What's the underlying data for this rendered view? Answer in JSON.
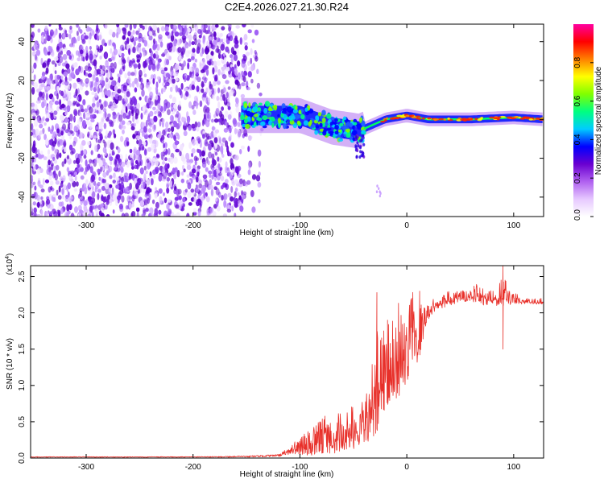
{
  "title": "C2E4.2026.027.21.30.R24",
  "chart_data": [
    {
      "type": "heatmap",
      "name": "spectrogram",
      "xlabel": "Height of straight line (km)",
      "ylabel": "Frequency (Hz)",
      "xlim": [
        -352,
        128
      ],
      "ylim": [
        -50,
        49
      ],
      "xticks": [
        -300,
        -200,
        -100,
        0,
        100
      ],
      "yticks": [
        -40,
        -20,
        0,
        20,
        40
      ],
      "colorbar": {
        "label": "Normalized spectral amplitude",
        "range": [
          0,
          1
        ],
        "ticks": [
          0.0,
          0.2,
          0.4,
          0.6,
          0.8
        ],
        "colors": [
          "#ffffff",
          "#e6c8ff",
          "#b060f0",
          "#6a00d0",
          "#0000ff",
          "#00ccff",
          "#00ff80",
          "#80ff00",
          "#ffff00",
          "#ff8000",
          "#ff0000",
          "#ff00a0"
        ]
      },
      "features": {
        "noise_region_x": [
          -352,
          -135
        ],
        "track_start_x": -155,
        "track_center_hz": [
          [
            -155,
            2
          ],
          [
            -100,
            2
          ],
          [
            -70,
            -4
          ],
          [
            -45,
            -6
          ],
          [
            -20,
            0
          ],
          [
            0,
            2
          ],
          [
            20,
            0
          ],
          [
            60,
            0
          ],
          [
            100,
            1
          ],
          [
            128,
            0
          ]
        ]
      }
    },
    {
      "type": "line",
      "name": "snr",
      "xlabel": "Height of straight line (km)",
      "ylabel": "SNR (10 * v/v)",
      "multiplier": "(x10",
      "multiplier_exp": "4",
      "xlim": [
        -352,
        128
      ],
      "ylim": [
        0,
        2.65
      ],
      "xticks": [
        -300,
        -200,
        -100,
        0,
        100
      ],
      "yticks": [
        0.0,
        0.5,
        1.0,
        1.5,
        2.0,
        2.5
      ],
      "series": [
        {
          "name": "SNR",
          "color": "#e8302a",
          "envelope": {
            "x": [
              -352,
              -200,
              -150,
              -120,
              -110,
              -100,
              -90,
              -80,
              -70,
              -60,
              -50,
              -40,
              -35,
              -30,
              -25,
              -20,
              -15,
              -10,
              -5,
              0,
              5,
              10,
              15,
              20,
              25,
              30,
              40,
              50,
              60,
              70,
              80,
              85,
              90,
              95,
              100,
              110,
              120,
              128
            ],
            "lo": [
              0.01,
              0.01,
              0.01,
              0.02,
              0.05,
              0.05,
              0.03,
              0.05,
              0.05,
              0.08,
              0.1,
              0.15,
              0.2,
              0.3,
              0.5,
              0.7,
              0.8,
              0.8,
              0.9,
              1.0,
              1.2,
              1.3,
              1.6,
              1.9,
              2.0,
              2.05,
              2.1,
              2.15,
              2.15,
              2.1,
              2.1,
              2.1,
              2.1,
              2.1,
              2.12,
              2.12,
              2.12,
              2.12
            ],
            "hi": [
              0.02,
              0.02,
              0.03,
              0.05,
              0.15,
              0.3,
              0.4,
              0.6,
              0.65,
              0.6,
              0.75,
              0.8,
              1.0,
              2.3,
              1.65,
              1.9,
              1.9,
              2.1,
              2.2,
              2.0,
              2.3,
              2.2,
              2.1,
              2.1,
              2.2,
              2.25,
              2.3,
              2.3,
              2.35,
              2.45,
              2.3,
              2.3,
              2.65,
              2.3,
              2.3,
              2.2,
              2.2,
              2.2
            ]
          },
          "notable_points": [
            [
              -28,
              2.28
            ],
            [
              -18,
              1.9
            ],
            [
              12,
              2.3
            ],
            [
              90,
              2.65
            ],
            [
              90,
              1.5
            ]
          ]
        }
      ]
    }
  ]
}
